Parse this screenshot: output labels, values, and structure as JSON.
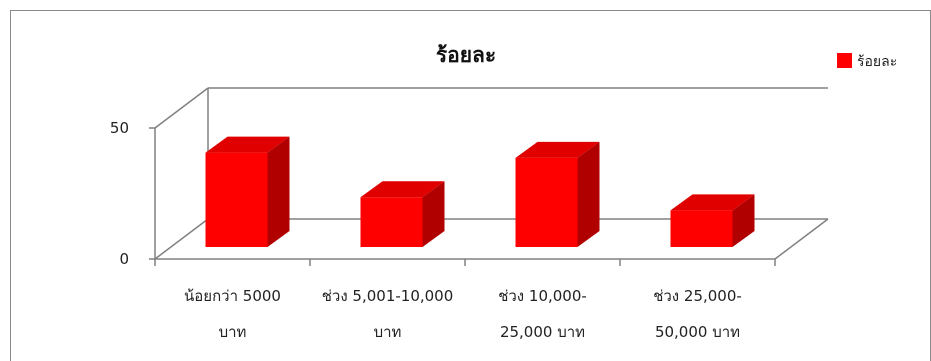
{
  "chart_data": {
    "type": "bar",
    "title": "ร้อยละ",
    "xlabel": "",
    "ylabel": "",
    "ylim": [
      0,
      50
    ],
    "yticks": [
      0,
      50
    ],
    "categories": [
      [
        "น้อยกว่า 5000",
        "บาท"
      ],
      [
        "ช่วง 5,001-10,000",
        "บาท"
      ],
      [
        "ช่วง 10,000-",
        "25,000 บาท"
      ],
      [
        "ช่วง 25,000-",
        "50,000 บาท"
      ]
    ],
    "series": [
      {
        "name": "ร้อยละ",
        "values": [
          36,
          19,
          34,
          14
        ],
        "color": "#ff0000"
      }
    ],
    "legend": "right",
    "grid": false,
    "style": "3d-column"
  }
}
